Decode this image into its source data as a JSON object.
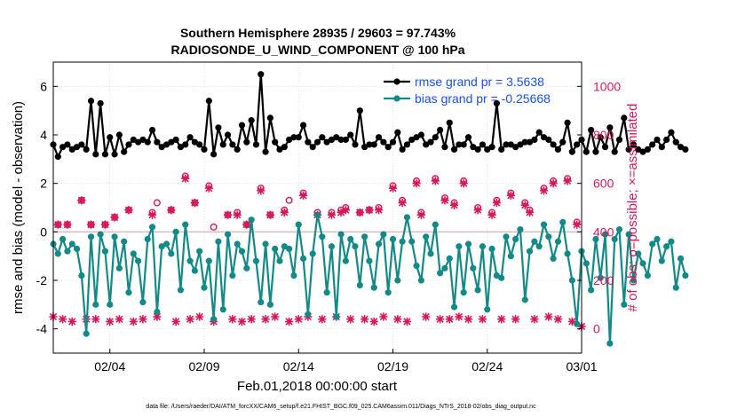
{
  "chart_data": {
    "type": "line",
    "title_line1": "Southern Hemisphere 28935 / 29603 = 97.743%",
    "title_line2": "RADIOSONDE_U_WIND_COMPONENT @ 100 hPa",
    "xlabel": "Feb.01,2018 00:00:00 start",
    "ylabel_left": "rmse and bias (model - observation)",
    "ylabel_right": "# of obs: o=possible; ×=assimilated",
    "footer": "data file: /Users/raeder/DAI/ATM_forcXX/CAM6_setup/f.e21.FHIST_BGC.f09_025.CAM6assim.011/Diags_NTrS_2018-02/obs_diag_output.nc",
    "x_range": [
      1,
      29
    ],
    "y_left_range": [
      -5,
      7
    ],
    "y_right_range": [
      -100,
      1100
    ],
    "x_ticks": [
      {
        "value": 4,
        "label": "02/04"
      },
      {
        "value": 9,
        "label": "02/09"
      },
      {
        "value": 14,
        "label": "02/14"
      },
      {
        "value": 19,
        "label": "02/19"
      },
      {
        "value": 24,
        "label": "02/24"
      },
      {
        "value": 29,
        "label": "03/01"
      }
    ],
    "y_left_ticks": [
      -4,
      -2,
      0,
      2,
      4,
      6
    ],
    "y_left_tick_labels": [
      "-4",
      "-2",
      "0",
      "2",
      "4",
      "6"
    ],
    "y_right_ticks": [
      0,
      200,
      400,
      600,
      800,
      1000
    ],
    "y_right_tick_labels": [
      "0",
      "200",
      "400",
      "600",
      "800",
      "1000"
    ],
    "reference_line_y": 0,
    "colors": {
      "rmse": "#000000",
      "bias": "#138a87",
      "obs": "#d6175a",
      "zero_line": "#d9a8a8",
      "legend_text": "#1a4fe0",
      "grid": "#cfcfcf"
    },
    "series": [
      {
        "name": "rmse grand pr = 3.5638",
        "axis": "left",
        "x0": 1,
        "dx": 0.25,
        "values": [
          3.6,
          3.1,
          3.5,
          3.6,
          3.4,
          3.5,
          3.6,
          3.4,
          5.4,
          3.2,
          5.3,
          3.2,
          3.9,
          3.2,
          4.0,
          3.3,
          3.6,
          3.8,
          3.7,
          3.8,
          3.7,
          4.2,
          3.7,
          3.5,
          3.6,
          3.7,
          3.8,
          3.5,
          3.6,
          3.9,
          3.7,
          3.6,
          3.4,
          5.4,
          3.2,
          4.3,
          3.6,
          4.0,
          3.6,
          3.4,
          4.4,
          3.7,
          4.6,
          3.6,
          6.5,
          3.3,
          4.7,
          3.7,
          3.4,
          3.5,
          3.8,
          3.9,
          3.9,
          4.4,
          3.7,
          3.5,
          3.7,
          3.9,
          3.7,
          3.8,
          3.9,
          3.8,
          3.8,
          4.0,
          3.6,
          5.0,
          3.5,
          3.6,
          3.6,
          3.9,
          3.7,
          3.5,
          3.7,
          4.1,
          3.4,
          3.6,
          3.8,
          3.9,
          4.0,
          3.6,
          3.7,
          3.9,
          4.2,
          3.5,
          4.5,
          3.4,
          3.6,
          3.6,
          3.9,
          3.5,
          3.4,
          3.6,
          3.4,
          3.5,
          5.3,
          3.4,
          3.6,
          3.6,
          3.5,
          3.6,
          3.7,
          3.7,
          3.8,
          4.1,
          3.9,
          3.8,
          3.6,
          3.4,
          3.7,
          4.5,
          3.3,
          3.6,
          3.8,
          3.3,
          4.2,
          3.3,
          3.9,
          3.5,
          4.3,
          3.3,
          3.8,
          4.7,
          3.4,
          3.6,
          3.4,
          3.3,
          3.4,
          3.6,
          3.8,
          3.5,
          3.8,
          4.1,
          3.7,
          3.5,
          3.4
        ]
      },
      {
        "name": "bias grand pr = -0.25668",
        "axis": "left",
        "x0": 1,
        "dx": 0.25,
        "values": [
          -0.5,
          -0.9,
          -0.3,
          -0.8,
          -0.5,
          -0.7,
          -1.8,
          -4.2,
          -0.2,
          -3.0,
          -0.1,
          -0.8,
          -3.0,
          -0.2,
          -1.5,
          -0.4,
          -2.5,
          -0.9,
          -1.2,
          -2.9,
          -0.3,
          0.2,
          -3.3,
          -0.6,
          -0.5,
          -0.9,
          0.0,
          -2.4,
          0.3,
          -1.2,
          -1.6,
          -0.8,
          -2.3,
          -1.2,
          -3.6,
          -0.4,
          -3.2,
          -0.1,
          -1.8,
          -0.5,
          -0.8,
          -1.5,
          0.5,
          -1.2,
          -2.9,
          -0.5,
          -3.0,
          -0.7,
          -1.2,
          -0.6,
          -0.7,
          -1.8,
          0.3,
          -1.1,
          -3.4,
          -0.9,
          0.7,
          -0.2,
          -2.5,
          -0.6,
          -3.5,
          -0.1,
          -1.2,
          -0.3,
          -0.6,
          -2.2,
          -0.2,
          -1.2,
          -2.3,
          -0.5,
          -0.1,
          -2.5,
          -0.3,
          -2.0,
          -0.4,
          0.6,
          -0.4,
          -1.4,
          -2.0,
          -0.2,
          -0.9,
          0.3,
          -1.7,
          -1.5,
          -1.1,
          -3.1,
          -0.6,
          -2.5,
          -0.5,
          -1.5,
          -2.4,
          -0.6,
          -3.2,
          -0.7,
          -1.8,
          -1.9,
          -0.2,
          -1.0,
          -0.3,
          0.1,
          -2.8,
          -0.8,
          -0.4,
          -0.6,
          0.3,
          -0.2,
          -1.1,
          -0.4,
          0.4,
          -0.9,
          -2.0,
          -3.8,
          -0.8,
          -1.3,
          -2.4,
          -0.3,
          -1.9,
          -0.1,
          -4.6,
          -0.3,
          0.1,
          -3.0,
          -0.1,
          -2.0,
          -0.9,
          -1.3,
          -1.8,
          -0.5,
          -0.3,
          -1.2,
          -0.6,
          -0.4,
          -2.3,
          -1.1,
          -1.8
        ]
      },
      {
        "name": "obs possible",
        "axis": "right",
        "marker": "circle",
        "points": [
          [
            1.25,
            430
          ],
          [
            1.75,
            430
          ],
          [
            2.5,
            530
          ],
          [
            3.0,
            430
          ],
          [
            3.75,
            430
          ],
          [
            4.25,
            460
          ],
          [
            5.0,
            490
          ],
          [
            6.25,
            480
          ],
          [
            6.5,
            520
          ],
          [
            7.25,
            490
          ],
          [
            8.0,
            630
          ],
          [
            8.5,
            520
          ],
          [
            9.25,
            590
          ],
          [
            9.5,
            420
          ],
          [
            10.25,
            470
          ],
          [
            10.75,
            480
          ],
          [
            11.25,
            430
          ],
          [
            12.0,
            580
          ],
          [
            12.5,
            470
          ],
          [
            13.25,
            490
          ],
          [
            13.5,
            530
          ],
          [
            14.25,
            560
          ],
          [
            15.0,
            480
          ],
          [
            15.75,
            480
          ],
          [
            16.25,
            490
          ],
          [
            16.5,
            500
          ],
          [
            17.25,
            480
          ],
          [
            17.75,
            490
          ],
          [
            18.25,
            500
          ],
          [
            19.0,
            590
          ],
          [
            19.5,
            530
          ],
          [
            20.25,
            610
          ],
          [
            20.5,
            480
          ],
          [
            21.25,
            620
          ],
          [
            21.75,
            540
          ],
          [
            22.25,
            520
          ],
          [
            22.75,
            610
          ],
          [
            23.5,
            500
          ],
          [
            24.25,
            480
          ],
          [
            24.5,
            530
          ],
          [
            25.25,
            560
          ],
          [
            26.0,
            520
          ],
          [
            26.25,
            490
          ],
          [
            27.0,
            580
          ],
          [
            27.5,
            610
          ],
          [
            28.25,
            620
          ],
          [
            28.75,
            440
          ]
        ]
      },
      {
        "name": "obs assimilated",
        "axis": "right",
        "marker": "x",
        "points": [
          [
            1.0,
            50
          ],
          [
            1.25,
            430
          ],
          [
            1.5,
            40
          ],
          [
            1.75,
            430
          ],
          [
            2.0,
            30
          ],
          [
            2.5,
            530
          ],
          [
            2.75,
            40
          ],
          [
            3.0,
            430
          ],
          [
            3.25,
            40
          ],
          [
            3.75,
            430
          ],
          [
            4.0,
            30
          ],
          [
            4.25,
            460
          ],
          [
            4.5,
            40
          ],
          [
            5.0,
            490
          ],
          [
            5.25,
            30
          ],
          [
            5.75,
            40
          ],
          [
            6.25,
            470
          ],
          [
            6.5,
            50
          ],
          [
            7.25,
            490
          ],
          [
            7.5,
            30
          ],
          [
            8.0,
            620
          ],
          [
            8.25,
            40
          ],
          [
            8.5,
            520
          ],
          [
            8.75,
            50
          ],
          [
            9.25,
            580
          ],
          [
            9.5,
            30
          ],
          [
            10.25,
            470
          ],
          [
            10.5,
            40
          ],
          [
            10.75,
            470
          ],
          [
            11.0,
            30
          ],
          [
            11.25,
            430
          ],
          [
            11.5,
            40
          ],
          [
            12.0,
            570
          ],
          [
            12.25,
            40
          ],
          [
            12.5,
            470
          ],
          [
            12.75,
            50
          ],
          [
            13.25,
            480
          ],
          [
            13.5,
            30
          ],
          [
            14.0,
            40
          ],
          [
            14.25,
            550
          ],
          [
            14.5,
            50
          ],
          [
            15.0,
            470
          ],
          [
            15.25,
            40
          ],
          [
            15.75,
            470
          ],
          [
            16.0,
            50
          ],
          [
            16.25,
            480
          ],
          [
            16.5,
            490
          ],
          [
            16.75,
            40
          ],
          [
            17.25,
            480
          ],
          [
            17.5,
            40
          ],
          [
            17.75,
            490
          ],
          [
            18.0,
            30
          ],
          [
            18.25,
            490
          ],
          [
            18.5,
            50
          ],
          [
            19.0,
            580
          ],
          [
            19.25,
            40
          ],
          [
            19.5,
            520
          ],
          [
            19.75,
            30
          ],
          [
            20.25,
            600
          ],
          [
            20.5,
            470
          ],
          [
            20.75,
            50
          ],
          [
            21.25,
            610
          ],
          [
            21.5,
            40
          ],
          [
            21.75,
            530
          ],
          [
            22.0,
            40
          ],
          [
            22.25,
            510
          ],
          [
            22.5,
            50
          ],
          [
            22.75,
            600
          ],
          [
            23.0,
            40
          ],
          [
            23.5,
            490
          ],
          [
            23.75,
            40
          ],
          [
            24.25,
            470
          ],
          [
            24.5,
            520
          ],
          [
            24.75,
            40
          ],
          [
            25.25,
            550
          ],
          [
            25.5,
            40
          ],
          [
            26.0,
            510
          ],
          [
            26.25,
            480
          ],
          [
            26.5,
            40
          ],
          [
            27.0,
            570
          ],
          [
            27.25,
            50
          ],
          [
            27.5,
            600
          ],
          [
            27.75,
            40
          ],
          [
            28.25,
            610
          ],
          [
            28.5,
            30
          ],
          [
            28.75,
            430
          ],
          [
            29.0,
            10
          ]
        ]
      }
    ],
    "legend": [
      {
        "label": "rmse grand pr = 3.5638",
        "series": 0
      },
      {
        "label": "bias grand pr = -0.25668",
        "series": 1
      }
    ],
    "legend_position": "top-right"
  }
}
